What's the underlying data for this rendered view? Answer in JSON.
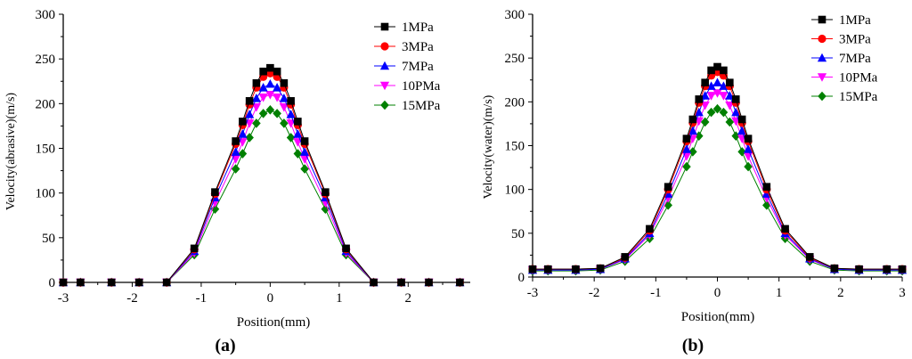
{
  "figure": {
    "panels": [
      {
        "caption": "(a)"
      },
      {
        "caption": "(b)"
      }
    ]
  },
  "chart_data": [
    {
      "type": "line",
      "panel": "a",
      "caption": "(a)",
      "title": "",
      "xlabel": "Position(mm)",
      "ylabel": "Velocity(abrasive)(m/s)",
      "xlim": [
        -3,
        2.9
      ],
      "ylim": [
        0,
        300
      ],
      "xticks": [
        -3,
        -2,
        -1,
        0,
        1,
        2
      ],
      "yticks": [
        0,
        50,
        100,
        150,
        200,
        250,
        300
      ],
      "grid": false,
      "legend_position": "top-right",
      "x": [
        -3.0,
        -2.75,
        -2.3,
        -1.9,
        -1.5,
        -1.1,
        -0.8,
        -0.5,
        -0.4,
        -0.3,
        -0.2,
        -0.1,
        0.0,
        0.1,
        0.2,
        0.3,
        0.4,
        0.5,
        0.8,
        1.1,
        1.5,
        1.9,
        2.3,
        2.75
      ],
      "series": [
        {
          "name": "1MPa",
          "color": "#000000",
          "marker": "square",
          "values": [
            0,
            0,
            0,
            0,
            0,
            38,
            101,
            158,
            180,
            203,
            223,
            236,
            240,
            236,
            223,
            203,
            180,
            158,
            101,
            38,
            0,
            0,
            0,
            0
          ]
        },
        {
          "name": "3MPa",
          "color": "#ff0000",
          "marker": "circle",
          "values": [
            0,
            0,
            0,
            0,
            0,
            37,
            99,
            155,
            176,
            199,
            218,
            230,
            234,
            230,
            218,
            199,
            176,
            155,
            99,
            37,
            0,
            0,
            0,
            0
          ]
        },
        {
          "name": "7MPa",
          "color": "#0000ff",
          "marker": "triangle-up",
          "values": [
            0,
            0,
            0,
            0,
            0,
            35,
            95,
            146,
            166,
            188,
            206,
            218,
            222,
            218,
            206,
            188,
            166,
            146,
            95,
            35,
            0,
            0,
            0,
            0
          ]
        },
        {
          "name": "10PMa",
          "color": "#ff00ff",
          "marker": "triangle-down",
          "values": [
            0,
            0,
            0,
            0,
            0,
            33,
            89,
            138,
            157,
            178,
            196,
            207,
            210,
            207,
            196,
            178,
            157,
            138,
            89,
            33,
            0,
            0,
            0,
            0
          ]
        },
        {
          "name": "15MPa",
          "color": "#008000",
          "marker": "diamond",
          "values": [
            0,
            0,
            0,
            0,
            0,
            31,
            82,
            127,
            144,
            162,
            178,
            189,
            193,
            189,
            178,
            162,
            144,
            127,
            82,
            31,
            0,
            0,
            0,
            0
          ]
        }
      ]
    },
    {
      "type": "line",
      "panel": "b",
      "caption": "(b)",
      "title": "",
      "xlabel": "Position(mm)",
      "ylabel": "Velocity(water)(m/s)",
      "xlim": [
        -3,
        3
      ],
      "ylim": [
        0,
        300
      ],
      "xticks": [
        -3,
        -2,
        -1,
        0,
        1,
        2,
        3
      ],
      "yticks": [
        0,
        50,
        100,
        150,
        200,
        250,
        300
      ],
      "grid": false,
      "legend_position": "top-right",
      "x": [
        -3.0,
        -2.75,
        -2.3,
        -1.9,
        -1.5,
        -1.1,
        -0.8,
        -0.5,
        -0.4,
        -0.3,
        -0.2,
        -0.1,
        0.0,
        0.1,
        0.2,
        0.3,
        0.4,
        0.5,
        0.8,
        1.1,
        1.5,
        1.9,
        2.3,
        2.75,
        3.0
      ],
      "series": [
        {
          "name": "1MPa",
          "color": "#000000",
          "marker": "square",
          "values": [
            9,
            9,
            9,
            10,
            23,
            55,
            103,
            158,
            180,
            203,
            222,
            236,
            240,
            236,
            222,
            203,
            180,
            158,
            103,
            55,
            23,
            10,
            9,
            9,
            9
          ]
        },
        {
          "name": "3MPa",
          "color": "#ff0000",
          "marker": "circle",
          "values": [
            9,
            9,
            9,
            10,
            22,
            53,
            100,
            155,
            176,
            199,
            218,
            230,
            234,
            230,
            218,
            199,
            176,
            155,
            100,
            53,
            22,
            10,
            9,
            9,
            9
          ]
        },
        {
          "name": "7MPa",
          "color": "#0000ff",
          "marker": "triangle-up",
          "values": [
            8,
            8,
            8,
            9,
            21,
            50,
            95,
            146,
            167,
            188,
            207,
            218,
            222,
            218,
            207,
            188,
            167,
            146,
            95,
            50,
            21,
            9,
            8,
            8,
            8
          ]
        },
        {
          "name": "10PMa",
          "color": "#ff00ff",
          "marker": "triangle-down",
          "values": [
            8,
            8,
            8,
            9,
            20,
            48,
            90,
            138,
            158,
            178,
            196,
            207,
            210,
            207,
            196,
            178,
            158,
            138,
            90,
            48,
            20,
            9,
            8,
            8,
            8
          ]
        },
        {
          "name": "15MPa",
          "color": "#008000",
          "marker": "diamond",
          "values": [
            7,
            7,
            7,
            8,
            18,
            44,
            82,
            126,
            143,
            161,
            177,
            188,
            192,
            188,
            177,
            161,
            143,
            126,
            82,
            44,
            18,
            8,
            7,
            7,
            7
          ]
        }
      ]
    }
  ]
}
